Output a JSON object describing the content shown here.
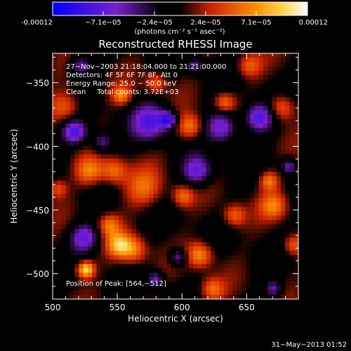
{
  "colorbar": {
    "tick_labels": [
      "-0.00012",
      "−7.1e−05",
      "−2.4e−05",
      "2.4e−05",
      "7.1e−05",
      "0.00012"
    ],
    "min": -0.00012,
    "max": 0.00012,
    "units": "(photons cm⁻² s⁻¹ asec⁻²)"
  },
  "chart_data": {
    "type": "heatmap",
    "title": "Reconstructed RHESSI Image",
    "xlabel": "Heliocentric X (arcsec)",
    "ylabel": "Heliocentric Y (arcsec)",
    "xlim": [
      500,
      690
    ],
    "ylim": [
      -520,
      -327
    ],
    "xticks": [
      500,
      550,
      600,
      650
    ],
    "yticks": [
      -350,
      -400,
      -450,
      -500
    ],
    "xtick_labels": [
      "500",
      "550",
      "600",
      "650"
    ],
    "ytick_labels": [
      "−350",
      "−400",
      "−450",
      "−500"
    ],
    "annotations": [
      "27−Nov−2003 21:18:04.000 to 21:21:00.000",
      "Detectors: 4F 5F 6F 7F 8F, Att 0",
      "Energy Range: 25.0 − 50.0 keV",
      "Clean     Total counts: 3.72E+03"
    ],
    "peak_label": "Position of Peak: [564,−512]",
    "peak_position": [
      564,
      -512
    ],
    "colormap": [
      "#0000ff",
      "#7a20cc",
      "#000000",
      "#cc2200",
      "#ff9000",
      "#ffffff"
    ]
  },
  "footer": {
    "timestamp": "31−May−2013 01:52"
  }
}
